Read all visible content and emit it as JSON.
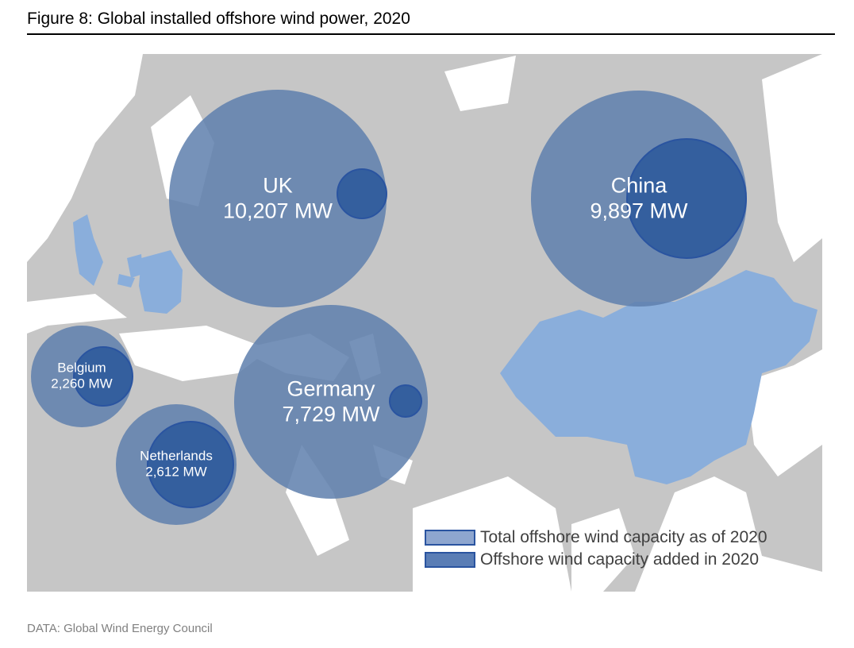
{
  "title": "Figure 8: Global installed offshore wind power, 2020",
  "source": "DATA: Global Wind Energy Council",
  "colors": {
    "land": "#c6c6c6",
    "highlight_country": "#8aaedb",
    "total_bubble": "#5e7fad",
    "added_bubble": "#2e5a9c",
    "bubble_stroke": "#2a54a0"
  },
  "highlighted_countries": [
    "UK",
    "Germany",
    "Netherlands",
    "Belgium",
    "China"
  ],
  "bubbles": [
    {
      "name": "UK",
      "value": "10,207 MW"
    },
    {
      "name": "China",
      "value": "9,897 MW"
    },
    {
      "name": "Germany",
      "value": "7,729 MW"
    },
    {
      "name": "Belgium",
      "value": "2,260 MW"
    },
    {
      "name": "Netherlands",
      "value": "2,612 MW"
    }
  ],
  "legend": [
    {
      "label": "Total offshore wind capacity as of 2020",
      "color": "#8ea6cf"
    },
    {
      "label": "Offshore wind capacity added in 2020",
      "color": "#5a7db5"
    }
  ]
}
